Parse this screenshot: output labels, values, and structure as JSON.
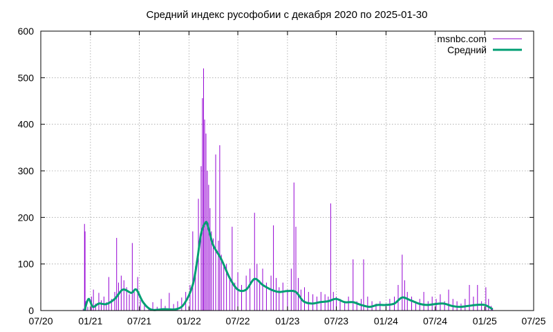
{
  "chart_data": {
    "type": "line",
    "title": "Средний индекс русофобии с декабря 2020  по 2025-01-30",
    "xlabel": "",
    "ylabel": "",
    "xlim": [
      "2020-07-01",
      "2025-07-01"
    ],
    "ylim": [
      0,
      600
    ],
    "yticks": [
      0,
      100,
      200,
      300,
      400,
      500,
      600
    ],
    "xticks": [
      {
        "date": "2020-07-01",
        "label": "07/20"
      },
      {
        "date": "2021-01-01",
        "label": "01/21"
      },
      {
        "date": "2021-07-01",
        "label": "07/21"
      },
      {
        "date": "2022-01-01",
        "label": "01/22"
      },
      {
        "date": "2022-07-01",
        "label": "07/22"
      },
      {
        "date": "2023-01-01",
        "label": "01/23"
      },
      {
        "date": "2023-07-01",
        "label": "07/23"
      },
      {
        "date": "2024-01-01",
        "label": "01/24"
      },
      {
        "date": "2024-07-01",
        "label": "07/24"
      },
      {
        "date": "2025-01-01",
        "label": "01/25"
      },
      {
        "date": "2025-07-01",
        "label": "07/25"
      }
    ],
    "grid": true,
    "legend_position": "top-right",
    "series": [
      {
        "name": "msnbc.com",
        "color": "#9400d3",
        "style": "impulses",
        "points": [
          [
            "2020-12-05",
            4
          ],
          [
            "2020-12-10",
            186
          ],
          [
            "2020-12-12",
            170
          ],
          [
            "2020-12-15",
            20
          ],
          [
            "2020-12-22",
            8
          ],
          [
            "2021-01-05",
            30
          ],
          [
            "2021-01-12",
            45
          ],
          [
            "2021-01-20",
            15
          ],
          [
            "2021-02-01",
            38
          ],
          [
            "2021-02-10",
            22
          ],
          [
            "2021-02-20",
            30
          ],
          [
            "2021-03-01",
            18
          ],
          [
            "2021-03-10",
            72
          ],
          [
            "2021-03-20",
            25
          ],
          [
            "2021-04-01",
            40
          ],
          [
            "2021-04-08",
            156
          ],
          [
            "2021-04-15",
            60
          ],
          [
            "2021-04-25",
            75
          ],
          [
            "2021-05-05",
            65
          ],
          [
            "2021-05-15",
            50
          ],
          [
            "2021-05-25",
            35
          ],
          [
            "2021-06-05",
            145
          ],
          [
            "2021-06-12",
            40
          ],
          [
            "2021-06-25",
            72
          ],
          [
            "2021-07-05",
            22
          ],
          [
            "2021-07-20",
            12
          ],
          [
            "2021-08-05",
            6
          ],
          [
            "2021-08-20",
            18
          ],
          [
            "2021-09-05",
            8
          ],
          [
            "2021-09-20",
            25
          ],
          [
            "2021-10-05",
            10
          ],
          [
            "2021-10-20",
            38
          ],
          [
            "2021-11-05",
            14
          ],
          [
            "2021-11-20",
            20
          ],
          [
            "2021-12-05",
            28
          ],
          [
            "2021-12-20",
            40
          ],
          [
            "2022-01-05",
            55
          ],
          [
            "2022-01-15",
            170
          ],
          [
            "2022-01-25",
            95
          ],
          [
            "2022-02-05",
            240
          ],
          [
            "2022-02-15",
            310
          ],
          [
            "2022-02-20",
            456
          ],
          [
            "2022-02-24",
            520
          ],
          [
            "2022-02-28",
            410
          ],
          [
            "2022-03-05",
            380
          ],
          [
            "2022-03-10",
            300
          ],
          [
            "2022-03-15",
            270
          ],
          [
            "2022-03-20",
            220
          ],
          [
            "2022-03-25",
            170
          ],
          [
            "2022-04-01",
            155
          ],
          [
            "2022-04-10",
            335
          ],
          [
            "2022-04-20",
            150
          ],
          [
            "2022-04-25",
            355
          ],
          [
            "2022-05-01",
            120
          ],
          [
            "2022-05-10",
            95
          ],
          [
            "2022-05-20",
            100
          ],
          [
            "2022-06-01",
            70
          ],
          [
            "2022-06-10",
            180
          ],
          [
            "2022-06-20",
            60
          ],
          [
            "2022-07-01",
            82
          ],
          [
            "2022-07-15",
            55
          ],
          [
            "2022-08-01",
            75
          ],
          [
            "2022-08-15",
            90
          ],
          [
            "2022-09-01",
            210
          ],
          [
            "2022-09-10",
            100
          ],
          [
            "2022-09-20",
            65
          ],
          [
            "2022-10-01",
            90
          ],
          [
            "2022-10-15",
            60
          ],
          [
            "2022-11-01",
            75
          ],
          [
            "2022-11-10",
            183
          ],
          [
            "2022-11-20",
            70
          ],
          [
            "2022-12-01",
            50
          ],
          [
            "2022-12-15",
            60
          ],
          [
            "2023-01-01",
            45
          ],
          [
            "2023-01-15",
            90
          ],
          [
            "2023-01-25",
            275
          ],
          [
            "2023-02-01",
            180
          ],
          [
            "2023-02-10",
            70
          ],
          [
            "2023-02-20",
            45
          ],
          [
            "2023-03-05",
            50
          ],
          [
            "2023-03-20",
            40
          ],
          [
            "2023-04-05",
            35
          ],
          [
            "2023-04-20",
            30
          ],
          [
            "2023-05-05",
            40
          ],
          [
            "2023-05-20",
            35
          ],
          [
            "2023-06-01",
            30
          ],
          [
            "2023-06-10",
            230
          ],
          [
            "2023-06-20",
            40
          ],
          [
            "2023-07-01",
            30
          ],
          [
            "2023-07-15",
            25
          ],
          [
            "2023-08-01",
            20
          ],
          [
            "2023-08-15",
            30
          ],
          [
            "2023-09-01",
            110
          ],
          [
            "2023-09-15",
            20
          ],
          [
            "2023-10-01",
            25
          ],
          [
            "2023-10-10",
            110
          ],
          [
            "2023-10-25",
            30
          ],
          [
            "2023-11-10",
            20
          ],
          [
            "2023-11-25",
            15
          ],
          [
            "2023-12-10",
            20
          ],
          [
            "2024-01-01",
            15
          ],
          [
            "2024-01-15",
            25
          ],
          [
            "2024-02-01",
            30
          ],
          [
            "2024-02-15",
            55
          ],
          [
            "2024-03-01",
            120
          ],
          [
            "2024-03-10",
            65
          ],
          [
            "2024-03-20",
            40
          ],
          [
            "2024-04-05",
            30
          ],
          [
            "2024-04-20",
            20
          ],
          [
            "2024-05-05",
            25
          ],
          [
            "2024-05-20",
            40
          ],
          [
            "2024-06-05",
            20
          ],
          [
            "2024-06-20",
            30
          ],
          [
            "2024-07-05",
            25
          ],
          [
            "2024-07-20",
            35
          ],
          [
            "2024-08-05",
            20
          ],
          [
            "2024-08-20",
            45
          ],
          [
            "2024-09-05",
            25
          ],
          [
            "2024-09-20",
            20
          ],
          [
            "2024-10-05",
            15
          ],
          [
            "2024-10-20",
            25
          ],
          [
            "2024-11-05",
            55
          ],
          [
            "2024-11-20",
            30
          ],
          [
            "2024-12-05",
            55
          ],
          [
            "2024-12-20",
            20
          ],
          [
            "2025-01-05",
            50
          ],
          [
            "2025-01-15",
            25
          ],
          [
            "2025-01-25",
            10
          ],
          [
            "2025-01-30",
            5
          ]
        ]
      },
      {
        "name": "Средний",
        "color": "#009e73",
        "style": "line",
        "points": [
          [
            "2020-12-10",
            0
          ],
          [
            "2020-12-25",
            25
          ],
          [
            "2021-01-10",
            8
          ],
          [
            "2021-02-01",
            15
          ],
          [
            "2021-03-01",
            14
          ],
          [
            "2021-04-01",
            25
          ],
          [
            "2021-05-01",
            45
          ],
          [
            "2021-06-01",
            38
          ],
          [
            "2021-06-20",
            45
          ],
          [
            "2021-07-15",
            18
          ],
          [
            "2021-08-15",
            2
          ],
          [
            "2021-10-01",
            3
          ],
          [
            "2021-11-15",
            3
          ],
          [
            "2021-12-15",
            15
          ],
          [
            "2022-01-15",
            55
          ],
          [
            "2022-02-01",
            110
          ],
          [
            "2022-02-15",
            165
          ],
          [
            "2022-03-05",
            190
          ],
          [
            "2022-03-15",
            175
          ],
          [
            "2022-04-01",
            140
          ],
          [
            "2022-05-01",
            110
          ],
          [
            "2022-06-01",
            70
          ],
          [
            "2022-07-01",
            45
          ],
          [
            "2022-08-01",
            45
          ],
          [
            "2022-09-01",
            68
          ],
          [
            "2022-10-01",
            55
          ],
          [
            "2022-11-01",
            45
          ],
          [
            "2022-12-01",
            40
          ],
          [
            "2023-01-01",
            42
          ],
          [
            "2023-02-01",
            40
          ],
          [
            "2023-03-01",
            20
          ],
          [
            "2023-04-01",
            15
          ],
          [
            "2023-05-01",
            18
          ],
          [
            "2023-06-01",
            20
          ],
          [
            "2023-07-01",
            25
          ],
          [
            "2023-08-01",
            18
          ],
          [
            "2023-09-01",
            18
          ],
          [
            "2023-10-01",
            12
          ],
          [
            "2023-11-01",
            8
          ],
          [
            "2023-12-01",
            12
          ],
          [
            "2024-01-01",
            12
          ],
          [
            "2024-02-01",
            15
          ],
          [
            "2024-03-01",
            28
          ],
          [
            "2024-04-01",
            22
          ],
          [
            "2024-05-01",
            15
          ],
          [
            "2024-06-01",
            12
          ],
          [
            "2024-07-01",
            14
          ],
          [
            "2024-08-01",
            15
          ],
          [
            "2024-09-01",
            10
          ],
          [
            "2024-10-01",
            8
          ],
          [
            "2024-11-01",
            10
          ],
          [
            "2024-12-01",
            12
          ],
          [
            "2025-01-01",
            12
          ],
          [
            "2025-01-30",
            3
          ]
        ]
      }
    ]
  }
}
